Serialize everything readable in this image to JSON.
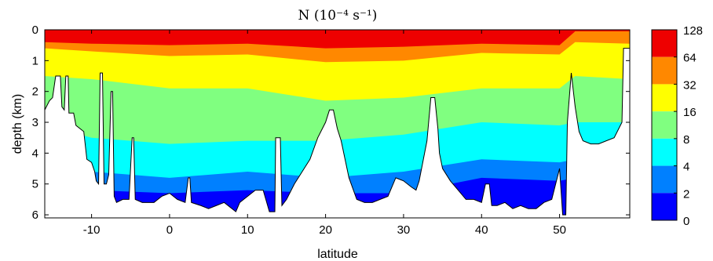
{
  "chart_data": {
    "type": "heatmap",
    "title": "N (10⁻⁴ s⁻¹)",
    "xlabel": "latitude",
    "ylabel": "depth (km)",
    "xlim": [
      -16,
      59
    ],
    "ylim": [
      0,
      6.1
    ],
    "x_ticks": [
      -10,
      0,
      10,
      20,
      30,
      40,
      50
    ],
    "y_ticks": [
      0,
      1,
      2,
      3,
      4,
      5,
      6
    ],
    "x_tick_labels": [
      "-10",
      "0",
      "10",
      "20",
      "30",
      "40",
      "50"
    ],
    "y_tick_labels": [
      "0",
      "1",
      "2",
      "3",
      "4",
      "5",
      "6"
    ],
    "colorbar": {
      "labels": [
        "128",
        "64",
        "32",
        "16",
        "8",
        "4",
        "2",
        "0"
      ],
      "colors": [
        "#ee0000",
        "#ff8800",
        "#ffff00",
        "#80ff80",
        "#00ffff",
        "#0080ff",
        "#0000ff"
      ]
    },
    "bands": [
      {
        "range": "64-128",
        "top": [
          [
            -16,
            0
          ],
          [
            0,
            0
          ],
          [
            10,
            0
          ],
          [
            20,
            0
          ],
          [
            30,
            0
          ],
          [
            40,
            0
          ],
          [
            50,
            0
          ],
          [
            52,
            0
          ],
          [
            59,
            0
          ]
        ],
        "bottom": [
          [
            -16,
            0.4
          ],
          [
            -10,
            0.45
          ],
          [
            0,
            0.5
          ],
          [
            10,
            0.45
          ],
          [
            20,
            0.6
          ],
          [
            30,
            0.55
          ],
          [
            40,
            0.45
          ],
          [
            50,
            0.5
          ],
          [
            52,
            0.05
          ],
          [
            59,
            0.05
          ]
        ]
      },
      {
        "range": "32-64",
        "bottom": [
          [
            -16,
            0.6
          ],
          [
            -10,
            0.7
          ],
          [
            0,
            0.85
          ],
          [
            10,
            0.8
          ],
          [
            20,
            1.05
          ],
          [
            30,
            1.0
          ],
          [
            40,
            0.75
          ],
          [
            50,
            0.8
          ],
          [
            52,
            0.4
          ],
          [
            59,
            0.45
          ]
        ]
      },
      {
        "range": "16-32",
        "bottom": [
          [
            -16,
            1.5
          ],
          [
            -10,
            1.6
          ],
          [
            0,
            1.9
          ],
          [
            10,
            1.9
          ],
          [
            20,
            2.3
          ],
          [
            30,
            2.2
          ],
          [
            40,
            1.9
          ],
          [
            50,
            1.9
          ],
          [
            52,
            1.5
          ],
          [
            59,
            1.6
          ]
        ]
      },
      {
        "range": "8-16",
        "bottom": [
          [
            -16,
            3.1
          ],
          [
            -10,
            3.5
          ],
          [
            0,
            3.7
          ],
          [
            10,
            3.6
          ],
          [
            20,
            3.6
          ],
          [
            30,
            3.4
          ],
          [
            40,
            3.0
          ],
          [
            50,
            3.1
          ],
          [
            52,
            3.0
          ],
          [
            59,
            3.0
          ]
        ]
      },
      {
        "range": "4-8",
        "bottom": [
          [
            -16,
            4.4
          ],
          [
            -10,
            4.6
          ],
          [
            0,
            4.8
          ],
          [
            10,
            4.6
          ],
          [
            20,
            4.8
          ],
          [
            30,
            4.6
          ],
          [
            40,
            4.2
          ],
          [
            50,
            4.3
          ],
          [
            52,
            4.2
          ],
          [
            59,
            4.3
          ]
        ]
      },
      {
        "range": "2-4",
        "bottom": [
          [
            -16,
            5.1
          ],
          [
            -10,
            5.2
          ],
          [
            0,
            5.3
          ],
          [
            10,
            5.2
          ],
          [
            20,
            5.3
          ],
          [
            30,
            5.3
          ],
          [
            40,
            4.8
          ],
          [
            50,
            4.9
          ],
          [
            52,
            4.8
          ],
          [
            59,
            4.8
          ]
        ]
      }
    ],
    "bottom_depth": [
      [
        -16,
        2.6
      ],
      [
        -15.4,
        2.3
      ],
      [
        -15,
        2.2
      ],
      [
        -14.6,
        1.5
      ],
      [
        -14,
        1.5
      ],
      [
        -13.8,
        2.5
      ],
      [
        -13.5,
        2.6
      ],
      [
        -13.3,
        1.5
      ],
      [
        -13,
        1.5
      ],
      [
        -12.9,
        2.7
      ],
      [
        -12.3,
        2.7
      ],
      [
        -12,
        3.1
      ],
      [
        -11,
        3.3
      ],
      [
        -10.6,
        4.2
      ],
      [
        -10,
        4.3
      ],
      [
        -9.6,
        4.6
      ],
      [
        -9.4,
        4.9
      ],
      [
        -9.1,
        5.0
      ],
      [
        -8.9,
        1.4
      ],
      [
        -8.6,
        1.4
      ],
      [
        -8.4,
        5.0
      ],
      [
        -8.1,
        5.0
      ],
      [
        -7.8,
        4.7
      ],
      [
        -7.5,
        2.0
      ],
      [
        -7.3,
        2.0
      ],
      [
        -7.1,
        5.4
      ],
      [
        -6.8,
        5.6
      ],
      [
        -6,
        5.5
      ],
      [
        -5.2,
        5.5
      ],
      [
        -4.8,
        3.5
      ],
      [
        -4.6,
        3.5
      ],
      [
        -4.4,
        5.5
      ],
      [
        -3.5,
        5.6
      ],
      [
        -2,
        5.6
      ],
      [
        -1,
        5.4
      ],
      [
        0,
        5.3
      ],
      [
        1,
        5.5
      ],
      [
        2,
        5.6
      ],
      [
        2.4,
        4.8
      ],
      [
        2.6,
        4.8
      ],
      [
        2.8,
        5.6
      ],
      [
        4,
        5.7
      ],
      [
        5,
        5.8
      ],
      [
        6,
        5.7
      ],
      [
        7,
        5.6
      ],
      [
        8,
        5.8
      ],
      [
        8.5,
        5.9
      ],
      [
        9,
        5.6
      ],
      [
        10,
        5.4
      ],
      [
        11,
        5.2
      ],
      [
        12,
        5.2
      ],
      [
        12.8,
        5.9
      ],
      [
        13.5,
        5.9
      ],
      [
        13.6,
        3.5
      ],
      [
        14.2,
        3.5
      ],
      [
        14.4,
        5.7
      ],
      [
        15,
        5.5
      ],
      [
        16,
        5.0
      ],
      [
        17,
        4.6
      ],
      [
        18,
        4.2
      ],
      [
        19,
        3.5
      ],
      [
        20,
        3.0
      ],
      [
        20.5,
        2.6
      ],
      [
        21,
        2.6
      ],
      [
        21.5,
        3.2
      ],
      [
        22,
        3.6
      ],
      [
        22.5,
        4.2
      ],
      [
        23,
        4.8
      ],
      [
        24,
        5.5
      ],
      [
        25,
        5.6
      ],
      [
        26,
        5.6
      ],
      [
        27,
        5.5
      ],
      [
        28,
        5.4
      ],
      [
        29,
        4.8
      ],
      [
        30,
        4.9
      ],
      [
        31,
        5.1
      ],
      [
        31.6,
        5.2
      ],
      [
        32,
        4.9
      ],
      [
        33,
        3.6
      ],
      [
        33.5,
        2.2
      ],
      [
        34,
        2.2
      ],
      [
        34.4,
        3.2
      ],
      [
        34.6,
        4.0
      ],
      [
        35,
        4.5
      ],
      [
        36,
        4.9
      ],
      [
        37,
        5.2
      ],
      [
        38,
        5.5
      ],
      [
        39,
        5.5
      ],
      [
        40,
        5.6
      ],
      [
        40.5,
        5.0
      ],
      [
        41,
        5.0
      ],
      [
        41.3,
        5.7
      ],
      [
        42,
        5.7
      ],
      [
        43,
        5.6
      ],
      [
        44,
        5.8
      ],
      [
        45,
        5.7
      ],
      [
        46,
        5.8
      ],
      [
        47,
        5.8
      ],
      [
        48,
        5.6
      ],
      [
        49,
        5.5
      ],
      [
        50,
        4.5
      ],
      [
        50.4,
        6.0
      ],
      [
        50.8,
        6.0
      ],
      [
        51,
        3.0
      ],
      [
        51.5,
        1.4
      ],
      [
        52,
        2.5
      ],
      [
        52.5,
        3.3
      ],
      [
        53,
        3.6
      ],
      [
        54,
        3.7
      ],
      [
        55,
        3.7
      ],
      [
        56,
        3.6
      ],
      [
        57,
        3.5
      ],
      [
        58,
        3.0
      ],
      [
        58.2,
        0.6
      ],
      [
        59,
        0.6
      ]
    ]
  }
}
